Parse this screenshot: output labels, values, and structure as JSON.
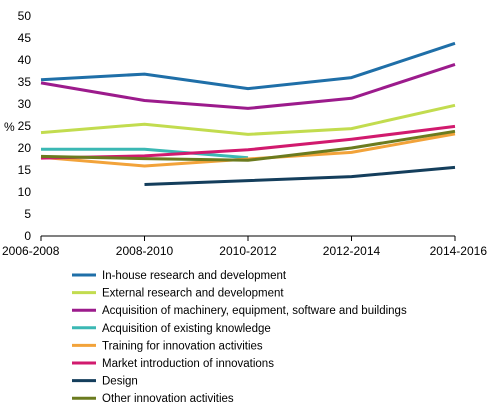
{
  "chart_data": {
    "type": "line",
    "ylabel": "%",
    "ylim": [
      0,
      50
    ],
    "yticks": [
      0,
      5,
      10,
      15,
      20,
      25,
      30,
      35,
      40,
      45,
      50
    ],
    "categories": [
      "2006-2008",
      "2008-2010",
      "2010-2012",
      "2012-2014",
      "2014-2016"
    ],
    "grid": false,
    "legend_position": "bottom",
    "series": [
      {
        "name": "In-house research and development",
        "color": "#1f6fa8",
        "values": [
          35.5,
          36.8,
          33.5,
          36.0,
          43.8
        ]
      },
      {
        "name": "External research and development",
        "color": "#c2dc4f",
        "values": [
          23.5,
          25.4,
          23.1,
          24.4,
          29.7
        ]
      },
      {
        "name": "Acquisition of machinery, equipment, software and buildings",
        "color": "#9c1b8c",
        "values": [
          34.8,
          30.8,
          29.0,
          31.3,
          39.0
        ]
      },
      {
        "name": "Acquisition of existing knowledge",
        "color": "#3bb8b4",
        "values": [
          19.7,
          19.7,
          17.8,
          null,
          null
        ]
      },
      {
        "name": "Training for innovation activities",
        "color": "#f2a33a",
        "values": [
          17.9,
          15.9,
          17.5,
          19.0,
          23.2
        ]
      },
      {
        "name": "Market introduction of innovations",
        "color": "#d11a6e",
        "values": [
          17.7,
          18.2,
          19.6,
          22.0,
          24.9
        ]
      },
      {
        "name": "Design",
        "color": "#143e5c",
        "values": [
          null,
          11.7,
          12.6,
          13.5,
          15.6
        ]
      },
      {
        "name": "Other innovation activities",
        "color": "#6b7b1f",
        "values": [
          18.1,
          17.6,
          17.2,
          20.0,
          23.8
        ]
      }
    ]
  }
}
